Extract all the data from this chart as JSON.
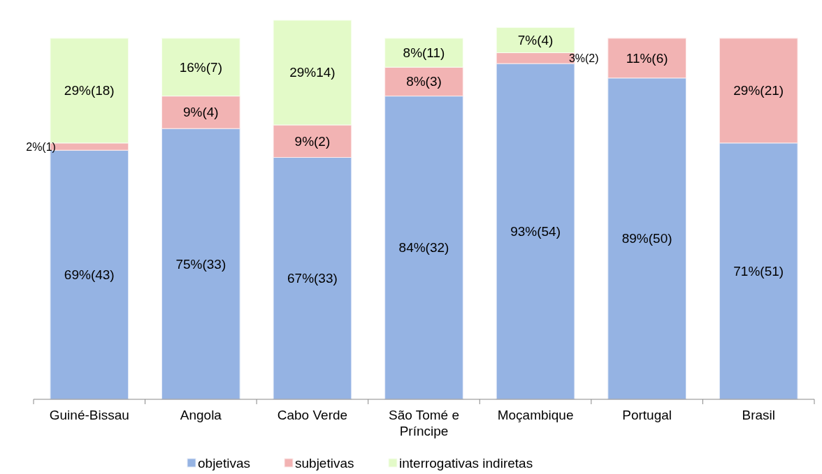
{
  "chart_data": {
    "type": "bar",
    "stacked": true,
    "categories": [
      "Guiné-Bissau",
      "Angola",
      "Cabo Verde",
      "São Tomé e Príncipe",
      "Moçambique",
      "Portugal",
      "Brasil"
    ],
    "ylim": [
      0,
      105
    ],
    "tick_labels": "x",
    "legend": "bottom",
    "series": [
      {
        "name": "objetivas",
        "color": "#95b3e3",
        "values": [
          69,
          75,
          67,
          84,
          93,
          89,
          71
        ],
        "value_labels": [
          "69%(43)",
          "75%(33)",
          "67%(33)",
          "84%(32)",
          "93%(54)",
          "89%(50)",
          "71%(51)"
        ]
      },
      {
        "name": "subjetivas",
        "color": "#f2b3b3",
        "values": [
          2,
          9,
          9,
          8,
          3,
          11,
          29
        ],
        "value_labels": [
          "2%(1)",
          "9%(4)",
          "9%(2)",
          "8%(3)",
          "3%(2)",
          "11%(6)",
          "29%(21)"
        ]
      },
      {
        "name": "interrogativas indiretas",
        "color": "#e3fac8",
        "values": [
          29,
          16,
          29,
          8,
          7,
          null,
          null
        ],
        "value_labels": [
          "29%(18)",
          "16%(7)",
          "29%14)",
          "8%(11)",
          "7%(4)",
          null,
          null
        ]
      }
    ]
  }
}
